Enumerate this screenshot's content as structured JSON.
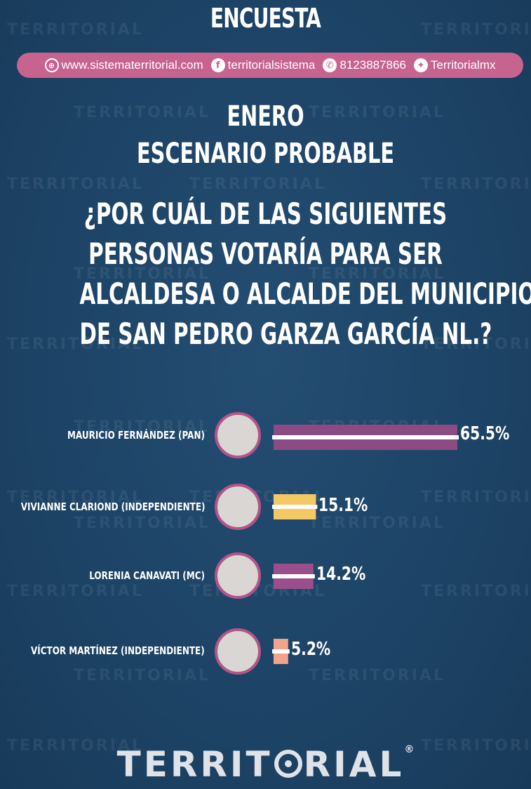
{
  "header": {
    "title": "ENCUESTA"
  },
  "social": {
    "website": "www.sistematerritorial.com",
    "facebook": "territorialsistema",
    "whatsapp": "8123887866",
    "twitter": "Territorialmx"
  },
  "heading": {
    "month": "ENERO",
    "scenario": "ESCENARIO PROBABLE",
    "question_lines": [
      "¿POR CUÁL DE LAS SIGUIENTES",
      "PERSONAS VOTARÍA PARA SER",
      "ALCALDESA O ALCALDE DEL MUNICIPIO",
      "DE SAN PEDRO GARZA GARCÍA NL.?"
    ]
  },
  "watermark": "TERRITORIAL",
  "logo": {
    "text_a": "TERRIT",
    "text_b": "RIAL",
    "mark": "®"
  },
  "icons": [
    "globe-icon",
    "facebook-icon",
    "whatsapp-icon",
    "twitter-icon",
    "avatar-photo"
  ],
  "colors": {
    "background": "#1d4466",
    "accent_pink": "#c6638f",
    "bar_purple": "#8a4c82",
    "bar_yellow": "#f2c962",
    "bar_salmon": "#f2a38c",
    "avatar_ring": "#b45487"
  },
  "chart_data": {
    "type": "bar",
    "orientation": "horizontal",
    "categories": [
      "MAURICIO FERNÁNDEZ  (PAN)",
      "VIVIANNE CLARIOND (INDEPENDIENTE)",
      "LORENIA CANAVATI (MC)",
      "VÍCTOR MARTÍNEZ (INDEPENDIENTE)"
    ],
    "values": [
      65.5,
      15.1,
      14.2,
      5.2
    ],
    "value_labels": [
      "65.5%",
      "15.1%",
      "14.2%",
      "5.2%"
    ],
    "bar_colors": [
      "#8a4c82",
      "#f2c962",
      "#9a4f8c",
      "#f2a38c"
    ],
    "xlim": [
      0,
      65.5
    ],
    "grid": false
  }
}
